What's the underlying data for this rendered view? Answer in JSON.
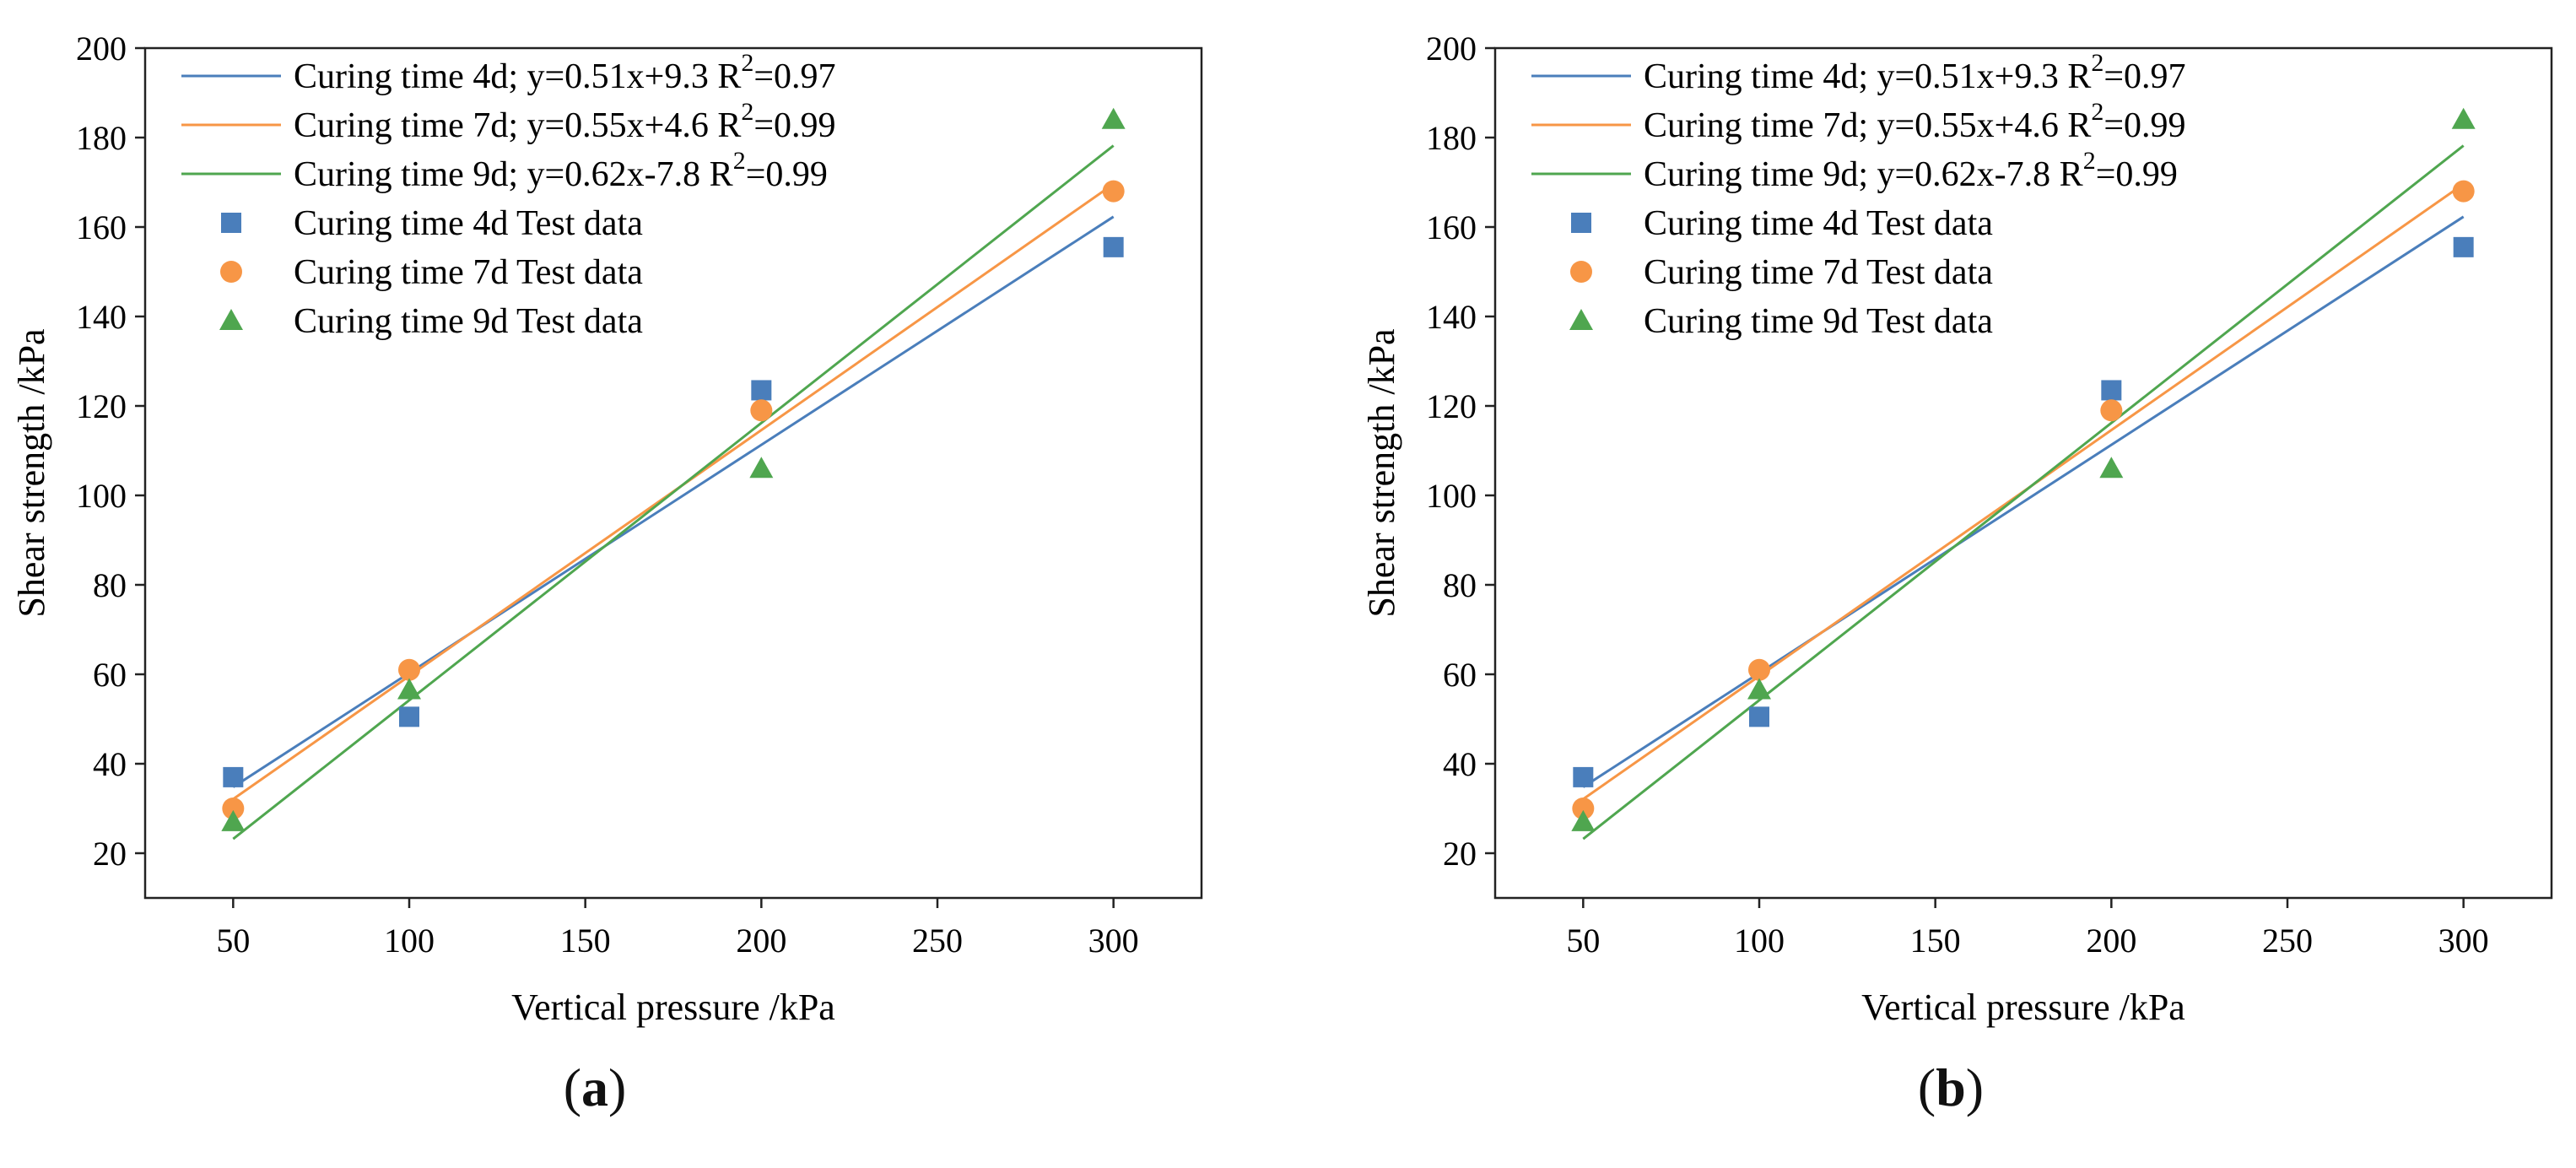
{
  "chart_data": [
    {
      "panel_label": "a",
      "type": "scatter",
      "xlabel": "Vertical pressure /kPa",
      "ylabel": "Shear strength /kPa",
      "xlim": [
        25,
        325
      ],
      "ylim": [
        10,
        200
      ],
      "xticks": [
        50,
        100,
        150,
        200,
        250,
        300
      ],
      "yticks": [
        20,
        40,
        60,
        80,
        100,
        120,
        140,
        160,
        180,
        200
      ],
      "grid": false,
      "legend_position": "top-left",
      "series": [
        {
          "name": "Curing time 4d; y=0.51x+9.3 R²=0.97",
          "kind": "fit-line",
          "color": "#4a7ebb",
          "slope": 0.51,
          "intercept": 9.3,
          "x": [
            50,
            300
          ]
        },
        {
          "name": "Curing time 7d; y=0.55x+4.6  R²=0.99",
          "kind": "fit-line",
          "color": "#f79646",
          "slope": 0.55,
          "intercept": 4.6,
          "x": [
            50,
            300
          ]
        },
        {
          "name": "Curing time 9d; y=0.62x-7.8  R²=0.99",
          "kind": "fit-line",
          "color": "#4fa64f",
          "slope": 0.62,
          "intercept": -7.8,
          "x": [
            50,
            300
          ]
        },
        {
          "name": "Curing time 4d Test data",
          "kind": "points",
          "marker": "square",
          "color": "#4a7ebb",
          "x": [
            50,
            100,
            200,
            300
          ],
          "y": [
            37,
            50.5,
            123.5,
            155.5
          ]
        },
        {
          "name": "Curing time 7d Test data",
          "kind": "points",
          "marker": "circle",
          "color": "#f79646",
          "x": [
            50,
            100,
            200,
            300
          ],
          "y": [
            30,
            61,
            119,
            168
          ]
        },
        {
          "name": "Curing time 9d Test data",
          "kind": "points",
          "marker": "triangle",
          "color": "#4fa64f",
          "x": [
            50,
            100,
            200,
            300
          ],
          "y": [
            27,
            56.5,
            106,
            184
          ]
        }
      ]
    },
    {
      "panel_label": "b",
      "type": "scatter",
      "xlabel": "Vertical pressure /kPa",
      "ylabel": "Shear strength /kPa",
      "xlim": [
        25,
        325
      ],
      "ylim": [
        10,
        200
      ],
      "xticks": [
        50,
        100,
        150,
        200,
        250,
        300
      ],
      "yticks": [
        20,
        40,
        60,
        80,
        100,
        120,
        140,
        160,
        180,
        200
      ],
      "grid": false,
      "legend_position": "top-left",
      "series": [
        {
          "name": "Curing time 4d; y=0.51x+9.3 R²=0.97",
          "kind": "fit-line",
          "color": "#4a7ebb",
          "slope": 0.51,
          "intercept": 9.3,
          "x": [
            50,
            300
          ]
        },
        {
          "name": "Curing time 7d; y=0.55x+4.6  R²=0.99",
          "kind": "fit-line",
          "color": "#f79646",
          "slope": 0.55,
          "intercept": 4.6,
          "x": [
            50,
            300
          ]
        },
        {
          "name": "Curing time 9d; y=0.62x-7.8  R²=0.99",
          "kind": "fit-line",
          "color": "#4fa64f",
          "slope": 0.62,
          "intercept": -7.8,
          "x": [
            50,
            300
          ]
        },
        {
          "name": "Curing time 4d Test data",
          "kind": "points",
          "marker": "square",
          "color": "#4a7ebb",
          "x": [
            50,
            100,
            200,
            300
          ],
          "y": [
            37,
            50.5,
            123.5,
            155.5
          ]
        },
        {
          "name": "Curing time 7d Test data",
          "kind": "points",
          "marker": "circle",
          "color": "#f79646",
          "x": [
            50,
            100,
            200,
            300
          ],
          "y": [
            30,
            61,
            119,
            168
          ]
        },
        {
          "name": "Curing time 9d Test data",
          "kind": "points",
          "marker": "triangle",
          "color": "#4fa64f",
          "x": [
            50,
            100,
            200,
            300
          ],
          "y": [
            27,
            56.5,
            106,
            184
          ]
        }
      ]
    }
  ]
}
